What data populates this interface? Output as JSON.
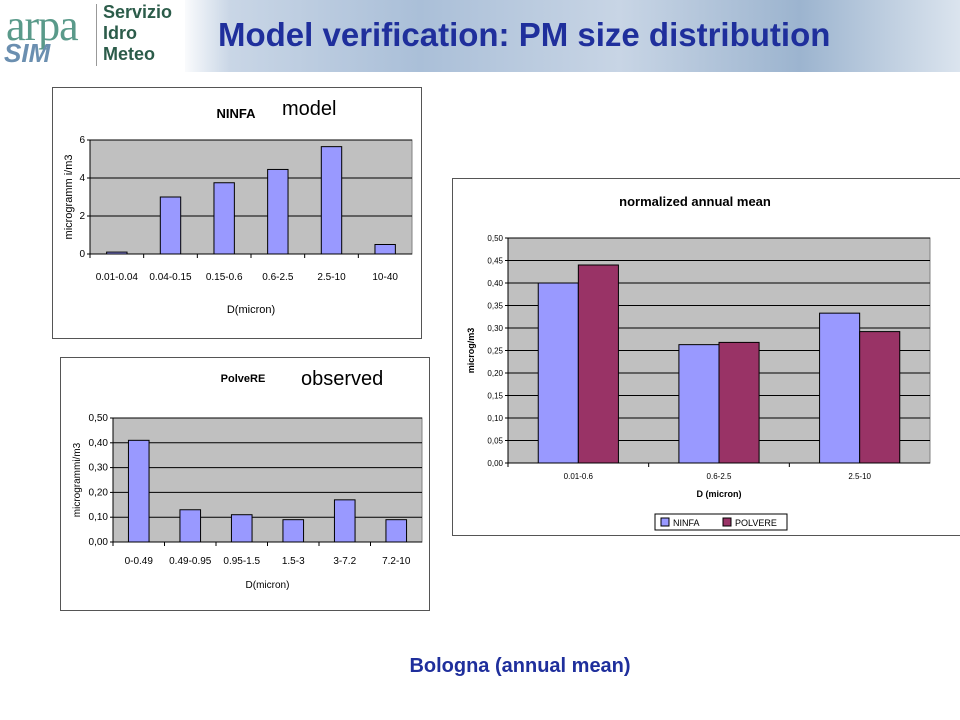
{
  "header": {
    "logo_text": "arpa",
    "logo_sub": "SIM",
    "logo_name_lines": [
      "Servizio",
      "Idro",
      "Meteo"
    ],
    "title": "Model verification: PM size distribution"
  },
  "colors": {
    "title_blue": "#1f2f9c",
    "plot_bg": "#c0c0c0",
    "bar_ninfa": "#9999ff",
    "bar_polvere": "#993366"
  },
  "panels": {
    "model": {
      "caption": "model"
    },
    "observed": {
      "caption": "observed"
    }
  },
  "footer": {
    "caption": "Bologna (annual mean)"
  },
  "chart_data": [
    {
      "id": "ninfa",
      "type": "bar",
      "title": "NINFA",
      "xlabel": "D(micron)",
      "ylabel": "microgramm i/m3",
      "categories": [
        "0.01-0.04",
        "0.04-0.15",
        "0.15-0.6",
        "0.6-2.5",
        "2.5-10",
        "10-40"
      ],
      "series": [
        {
          "values": [
            0.1,
            3.0,
            3.75,
            4.45,
            5.65,
            0.5
          ]
        }
      ],
      "ylim": [
        0,
        6
      ],
      "yticks": [
        "0",
        "2",
        "4",
        "6"
      ],
      "grid": true,
      "legend": "none"
    },
    {
      "id": "polvere",
      "type": "bar",
      "title": "PolveRE",
      "xlabel": "D(micron)",
      "ylabel": "microgrammi/m3",
      "categories": [
        "0-0.49",
        "0.49-0.95",
        "0.95-1.5",
        "1.5-3",
        "3-7.2",
        "7.2-10"
      ],
      "series": [
        {
          "values": [
            0.41,
            0.13,
            0.11,
            0.09,
            0.17,
            0.09
          ]
        }
      ],
      "ylim": [
        0,
        0.5
      ],
      "yticks": [
        "0,00",
        "0,10",
        "0,20",
        "0,30",
        "0,40",
        "0,50"
      ],
      "grid": true,
      "legend": "none"
    },
    {
      "id": "normalized",
      "type": "bar",
      "title": "normalized annual mean",
      "xlabel": "D (micron)",
      "ylabel": "microg/m3",
      "categories": [
        "0.01-0.6",
        "0.6-2.5",
        "2.5-10"
      ],
      "series": [
        {
          "name": "NINFA",
          "values": [
            0.4,
            0.263,
            0.333
          ]
        },
        {
          "name": "POLVERE",
          "values": [
            0.44,
            0.268,
            0.292
          ]
        }
      ],
      "ylim": [
        0,
        0.5
      ],
      "yticks": [
        "0,00",
        "0,05",
        "0,10",
        "0,15",
        "0,20",
        "0,25",
        "0,30",
        "0,35",
        "0,40",
        "0,45",
        "0,50"
      ],
      "grid": true,
      "legend": "bottom"
    }
  ]
}
